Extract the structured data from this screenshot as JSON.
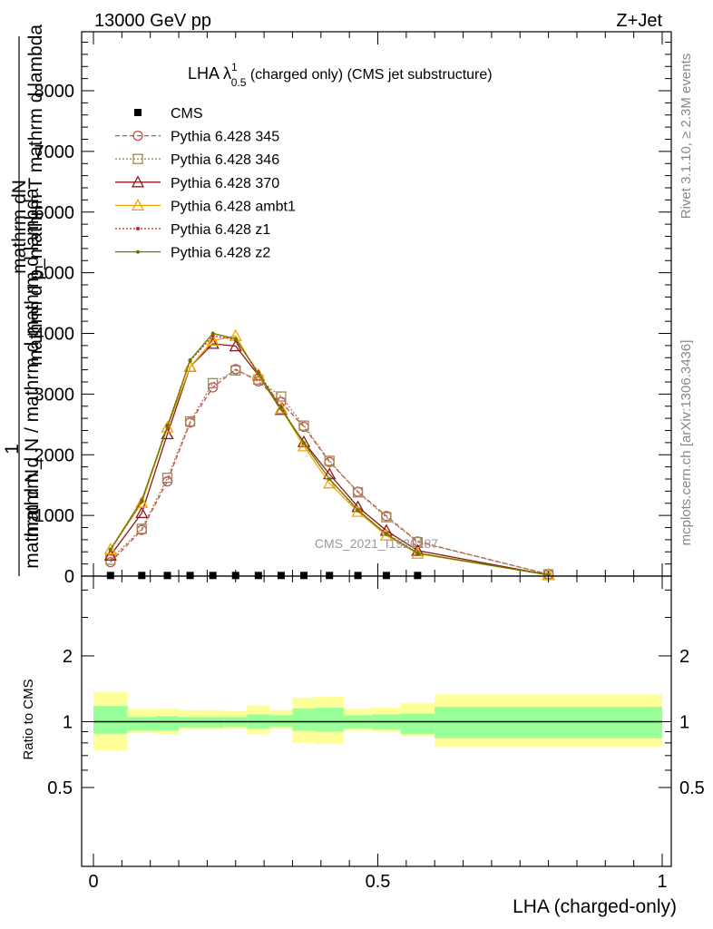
{
  "header": {
    "energy": "13000 GeV pp",
    "process": "Z+Jet"
  },
  "plot_title": {
    "prefix": "LHA λ",
    "sup": "1",
    "sub": "0.5",
    "suffix": " (charged only) (CMS jet substructure)"
  },
  "side_labels": {
    "rivet": "Rivet 3.1.10, ≥ 2.3M events",
    "mcplots": "mcplots.cern.ch [arXiv:1306.3436]"
  },
  "watermark": "CMS_2021_I1920187",
  "ylabel_main": {
    "line_a": "mathrm dN",
    "line_b": "mathrm d p_mathrm T mathrm d lambda",
    "one": "1",
    "line_c": "mathrm d N / mathrm d mathrm d lambda",
    "line_d": "mathrm d N_"
  },
  "ylabel_ratio": "Ratio to CMS",
  "xlabel": "LHA (charged-only)",
  "chart_data": [
    {
      "type": "line",
      "panel": "main",
      "xlim": [
        -0.02,
        1.0
      ],
      "ylim": [
        0,
        9000
      ],
      "x_ticks": [
        0,
        0.5,
        1
      ],
      "y_ticks": [
        1000,
        2000,
        3000,
        4000,
        5000,
        6000,
        7000,
        8000
      ],
      "y_tick_labels": [
        "1000",
        "2000",
        "3000",
        "4000",
        "5000",
        "6000",
        "7000",
        "8000"
      ],
      "x_tick_labels": [
        "0",
        "0.5",
        "1"
      ],
      "x": [
        0.03,
        0.085,
        0.13,
        0.17,
        0.21,
        0.25,
        0.29,
        0.33,
        0.37,
        0.415,
        0.465,
        0.515,
        0.57,
        0.8
      ],
      "series": [
        {
          "name": "CMS",
          "color": "#000000",
          "marker": "square",
          "values": [
            10,
            10,
            10,
            10,
            10,
            10,
            10,
            10,
            10,
            10,
            10,
            10,
            10,
            null
          ]
        },
        {
          "name": "Pythia 6.428 345",
          "color": "#c0504d",
          "marker": "circle",
          "dash": "5,3",
          "values": [
            230,
            760,
            1560,
            2530,
            3110,
            3410,
            3210,
            2870,
            2460,
            1880,
            1390,
            990,
            570,
            30
          ]
        },
        {
          "name": "Pythia 6.428 346",
          "color": "#a08a50",
          "marker": "square-open",
          "dash": "2,2",
          "values": [
            270,
            780,
            1620,
            2550,
            3180,
            3390,
            3240,
            2960,
            2480,
            1900,
            1380,
            970,
            560,
            30
          ]
        },
        {
          "name": "Pythia 6.428 370",
          "color": "#8b1a1a",
          "marker": "triangle",
          "dash": "",
          "values": [
            340,
            1040,
            2340,
            3450,
            3830,
            3790,
            3310,
            2740,
            2210,
            1680,
            1140,
            750,
            420,
            20
          ]
        },
        {
          "name": "Pythia 6.428 ambt1",
          "color": "#f0a500",
          "marker": "triangle",
          "dash": "",
          "values": [
            440,
            1210,
            2450,
            3450,
            3880,
            3960,
            3320,
            2760,
            2140,
            1530,
            1060,
            670,
            370,
            20
          ]
        },
        {
          "name": "Pythia 6.428 z1",
          "color": "#cc2222",
          "marker": "dot",
          "dash": "2,2",
          "values": [
            430,
            1230,
            2480,
            3550,
            3960,
            3900,
            3360,
            2780,
            2190,
            1600,
            1080,
            700,
            380,
            20
          ]
        },
        {
          "name": "Pythia 6.428 z2",
          "color": "#667a00",
          "marker": "dot",
          "dash": "",
          "values": [
            440,
            1250,
            2460,
            3560,
            4000,
            3910,
            3340,
            2760,
            2190,
            1600,
            1090,
            690,
            380,
            20
          ]
        }
      ]
    },
    {
      "type": "area",
      "panel": "ratio",
      "ylabel": "Ratio to CMS",
      "ylim": [
        0.4,
        2.4
      ],
      "y_ticks": [
        0.5,
        1,
        2
      ],
      "y_tick_labels": [
        "0.5",
        "1",
        "2"
      ],
      "x_ticks": [
        0,
        0.5,
        1
      ],
      "x_tick_labels": [
        "0",
        "0.5",
        "1"
      ],
      "bins": [
        {
          "x0": 0.0,
          "x1": 0.06,
          "inner": [
            0.88,
            1.18
          ],
          "outer": [
            0.74,
            1.37
          ]
        },
        {
          "x0": 0.06,
          "x1": 0.11,
          "inner": [
            0.91,
            1.05
          ],
          "outer": [
            0.89,
            1.14
          ]
        },
        {
          "x0": 0.11,
          "x1": 0.15,
          "inner": [
            0.91,
            1.06
          ],
          "outer": [
            0.88,
            1.15
          ]
        },
        {
          "x0": 0.15,
          "x1": 0.19,
          "inner": [
            0.94,
            1.05
          ],
          "outer": [
            0.92,
            1.13
          ]
        },
        {
          "x0": 0.19,
          "x1": 0.23,
          "inner": [
            0.94,
            1.05
          ],
          "outer": [
            0.92,
            1.13
          ]
        },
        {
          "x0": 0.23,
          "x1": 0.27,
          "inner": [
            0.95,
            1.05
          ],
          "outer": [
            0.93,
            1.12
          ]
        },
        {
          "x0": 0.27,
          "x1": 0.31,
          "inner": [
            0.93,
            1.08
          ],
          "outer": [
            0.88,
            1.19
          ]
        },
        {
          "x0": 0.31,
          "x1": 0.35,
          "inner": [
            0.95,
            1.07
          ],
          "outer": [
            0.93,
            1.13
          ]
        },
        {
          "x0": 0.35,
          "x1": 0.39,
          "inner": [
            0.91,
            1.15
          ],
          "outer": [
            0.8,
            1.29
          ]
        },
        {
          "x0": 0.39,
          "x1": 0.44,
          "inner": [
            0.9,
            1.16
          ],
          "outer": [
            0.79,
            1.3
          ]
        },
        {
          "x0": 0.44,
          "x1": 0.49,
          "inner": [
            0.93,
            1.07
          ],
          "outer": [
            0.91,
            1.15
          ]
        },
        {
          "x0": 0.49,
          "x1": 0.54,
          "inner": [
            0.92,
            1.08
          ],
          "outer": [
            0.9,
            1.16
          ]
        },
        {
          "x0": 0.54,
          "x1": 0.6,
          "inner": [
            0.88,
            1.09
          ],
          "outer": [
            0.86,
            1.22
          ]
        },
        {
          "x0": 0.6,
          "x1": 1.0,
          "inner": [
            0.84,
            1.17
          ],
          "outer": [
            0.77,
            1.33
          ]
        }
      ]
    }
  ]
}
